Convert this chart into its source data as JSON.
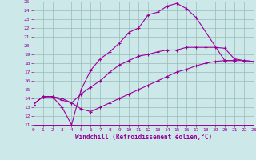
{
  "xlabel": "Windchill (Refroidissement éolien,°C)",
  "bg_color": "#cce8e8",
  "grid_color": "#99bbbb",
  "line_color": "#990099",
  "xlim": [
    0,
    23
  ],
  "ylim": [
    11,
    25
  ],
  "xticks": [
    0,
    1,
    2,
    3,
    4,
    5,
    6,
    7,
    8,
    9,
    10,
    11,
    12,
    13,
    14,
    15,
    16,
    17,
    18,
    19,
    20,
    21,
    22,
    23
  ],
  "yticks": [
    11,
    12,
    13,
    14,
    15,
    16,
    17,
    18,
    19,
    20,
    21,
    22,
    23,
    24,
    25
  ],
  "line1_x": [
    0,
    1,
    2,
    3,
    4,
    5,
    6,
    7,
    8,
    9,
    10,
    11,
    12,
    13,
    14,
    15,
    16,
    17,
    20,
    21
  ],
  "line1_y": [
    13.3,
    14.2,
    14.2,
    13.0,
    11.0,
    15.0,
    17.2,
    18.5,
    19.3,
    20.3,
    21.5,
    22.0,
    23.5,
    23.8,
    24.5,
    24.8,
    24.2,
    23.2,
    18.3,
    18.3
  ],
  "line2_x": [
    0,
    1,
    2,
    3,
    4,
    5,
    6,
    7,
    8,
    9,
    10,
    11,
    12,
    13,
    14,
    15,
    16,
    17,
    18,
    19,
    20,
    21,
    22,
    23
  ],
  "line2_y": [
    13.3,
    14.2,
    14.2,
    14.0,
    13.5,
    14.5,
    15.3,
    16.0,
    17.0,
    17.8,
    18.3,
    18.8,
    19.0,
    19.3,
    19.5,
    19.5,
    19.8,
    19.8,
    19.8,
    19.8,
    19.7,
    18.5,
    18.3,
    18.2
  ],
  "line3_x": [
    0,
    1,
    2,
    3,
    4,
    5,
    6,
    7,
    8,
    9,
    10,
    11,
    12,
    13,
    14,
    15,
    16,
    17,
    18,
    19,
    20,
    21,
    22,
    23
  ],
  "line3_y": [
    13.3,
    14.2,
    14.2,
    13.8,
    13.5,
    12.8,
    12.5,
    13.0,
    13.5,
    14.0,
    14.5,
    15.0,
    15.5,
    16.0,
    16.5,
    17.0,
    17.3,
    17.7,
    18.0,
    18.2,
    18.3,
    18.3,
    18.3,
    18.2
  ]
}
